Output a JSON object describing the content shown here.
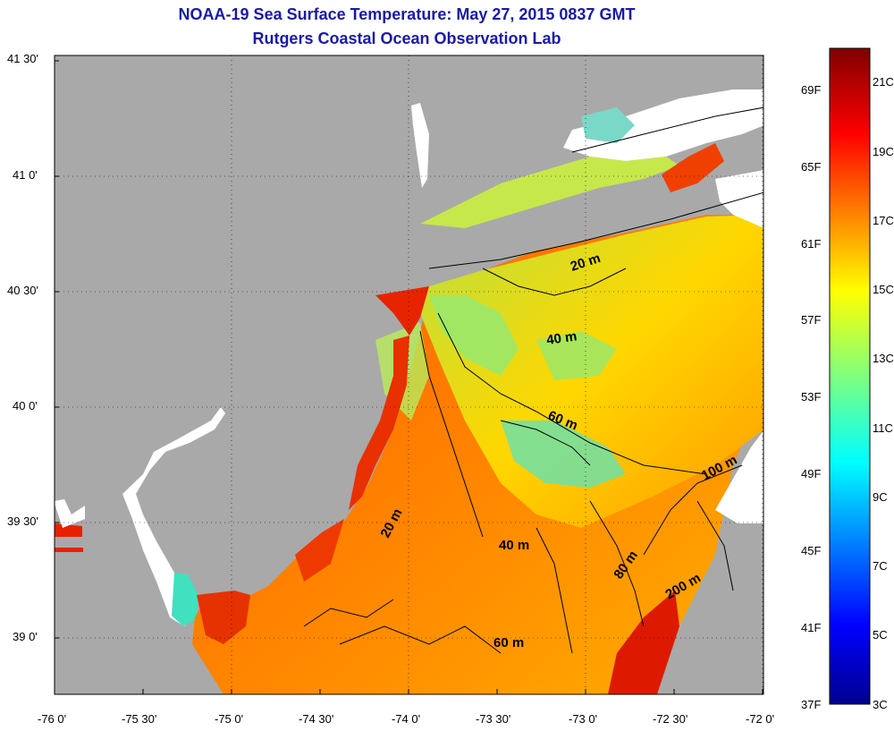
{
  "header": {
    "title": "NOAA-19 Sea Surface Temperature:  May 27, 2015 0837 GMT",
    "subtitle": "Rutgers Coastal Ocean Observation Lab"
  },
  "map": {
    "lat_ticks": [
      "41 30'",
      "41 0'",
      "40 30'",
      "40 0'",
      "39 30'",
      "39 0'"
    ],
    "lon_ticks": [
      "-76 0'",
      "-75 30'",
      "-75 0'",
      "-74 30'",
      "-74 0'",
      "-73 30'",
      "-73 0'",
      "-72 30'",
      "-72 0'"
    ],
    "isobath_labels": [
      "20 m",
      "40 m",
      "60 m",
      "100 m",
      "20 m",
      "40 m",
      "80 m",
      "200 m",
      "60 m"
    ],
    "land_color": "#a9a9a9",
    "cloud_color": "#ffffff"
  },
  "colorbar": {
    "fahrenheit": [
      "69F",
      "65F",
      "61F",
      "57F",
      "53F",
      "49F",
      "45F",
      "41F",
      "37F"
    ],
    "celsius": [
      "21C",
      "19C",
      "17C",
      "15C",
      "13C",
      "11C",
      "9C",
      "7C",
      "5C",
      "3C"
    ],
    "range_c": [
      3,
      22
    ]
  }
}
